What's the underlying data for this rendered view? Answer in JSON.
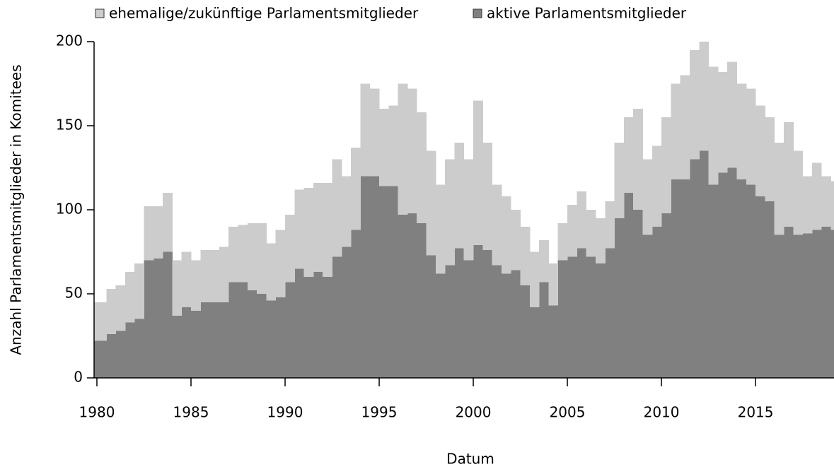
{
  "chart_data": {
    "type": "stacked-step-area",
    "legend": "top",
    "xlabel": "Datum",
    "ylabel": "Anzahl Parlamentsmitglieder in Komitees",
    "x": [
      1980,
      1980.5,
      1981,
      1981.5,
      1982,
      1982.5,
      1983,
      1983.5,
      1984,
      1984.5,
      1985,
      1985.5,
      1986,
      1986.5,
      1987,
      1987.5,
      1988,
      1988.5,
      1989,
      1989.5,
      1990,
      1990.5,
      1991,
      1991.5,
      1992,
      1992.5,
      1993,
      1993.5,
      1994,
      1994.5,
      1995,
      1995.5,
      1996,
      1996.5,
      1997,
      1997.5,
      1998,
      1998.5,
      1999,
      1999.5,
      2000,
      2000.5,
      2001,
      2001.5,
      2002,
      2002.5,
      2003,
      2003.5,
      2004,
      2004.5,
      2005,
      2005.5,
      2006,
      2006.5,
      2007,
      2007.5,
      2008,
      2008.5,
      2009,
      2009.5,
      2010,
      2010.5,
      2011,
      2011.5,
      2012,
      2012.5,
      2013,
      2013.5,
      2014,
      2014.5,
      2015,
      2015.5,
      2016,
      2016.5,
      2017,
      2017.5,
      2018,
      2018.5,
      2019
    ],
    "series": [
      {
        "name": "aktive Parlamentsmitglieder",
        "color": "#808080",
        "values": [
          22,
          26,
          28,
          33,
          35,
          70,
          71,
          75,
          37,
          42,
          40,
          45,
          45,
          45,
          57,
          57,
          52,
          50,
          46,
          48,
          57,
          65,
          60,
          63,
          60,
          72,
          78,
          88,
          120,
          120,
          114,
          114,
          97,
          98,
          92,
          73,
          62,
          67,
          77,
          70,
          79,
          76,
          67,
          62,
          64,
          55,
          42,
          57,
          43,
          70,
          72,
          77,
          72,
          68,
          77,
          95,
          110,
          100,
          85,
          90,
          98,
          118,
          118,
          130,
          135,
          115,
          122,
          125,
          118,
          115,
          108,
          105,
          85,
          90,
          85,
          86,
          88,
          90,
          88
        ]
      },
      {
        "name": "ehemalige/zukünftige Parlamentsmitglieder",
        "color": "#cccccc",
        "values": [
          23,
          27,
          27,
          30,
          33,
          32,
          31,
          35,
          33,
          33,
          30,
          31,
          31,
          33,
          33,
          34,
          40,
          42,
          34,
          40,
          40,
          47,
          53,
          53,
          56,
          58,
          42,
          49,
          55,
          52,
          46,
          48,
          78,
          74,
          66,
          62,
          53,
          63,
          63,
          60,
          86,
          64,
          48,
          46,
          36,
          35,
          33,
          25,
          25,
          22,
          31,
          34,
          28,
          27,
          28,
          45,
          45,
          60,
          45,
          48,
          57,
          57,
          62,
          65,
          65,
          70,
          60,
          63,
          57,
          57,
          54,
          50,
          55,
          62,
          50,
          34,
          40,
          30,
          29
        ]
      }
    ],
    "xlim": [
      1979.85,
      2019.17
    ],
    "xticks": [
      1980,
      1985,
      1990,
      1995,
      2000,
      2005,
      2010,
      2015
    ],
    "ylim": [
      0,
      200
    ],
    "yticks": [
      0,
      50,
      100,
      150,
      200
    ]
  }
}
